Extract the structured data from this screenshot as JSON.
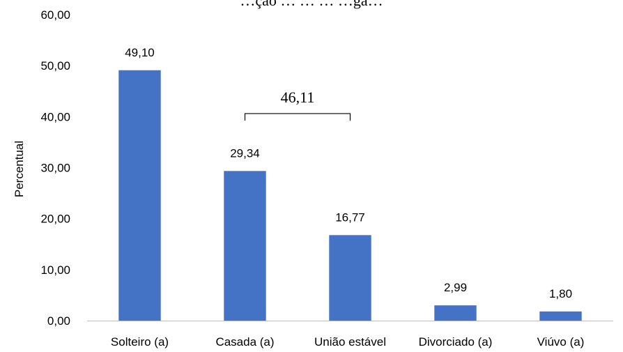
{
  "chart_data": {
    "type": "bar",
    "title": "…ção … … … …ga…",
    "ylabel": "Percentual",
    "xlabel": "",
    "categories": [
      "Solteiro (a)",
      "Casada (a)",
      "União estável",
      "Divorciado (a)",
      "Viúvo (a)"
    ],
    "values": [
      49.1,
      29.34,
      16.77,
      2.99,
      1.8
    ],
    "data_labels": [
      "49,10",
      "29,34",
      "16,77",
      "2,99",
      "1,80"
    ],
    "ylim": [
      0,
      60
    ],
    "yticks": [
      0,
      10,
      20,
      30,
      40,
      50,
      60
    ],
    "ytick_labels": [
      "0,00",
      "10,00",
      "20,00",
      "30,00",
      "40,00",
      "50,00",
      "60,00"
    ],
    "grid": false,
    "legend": "none",
    "bar_color": "#4472C4",
    "annotation": {
      "text": "46,11",
      "spans_categories": [
        "Casada (a)",
        "União estável"
      ]
    }
  }
}
